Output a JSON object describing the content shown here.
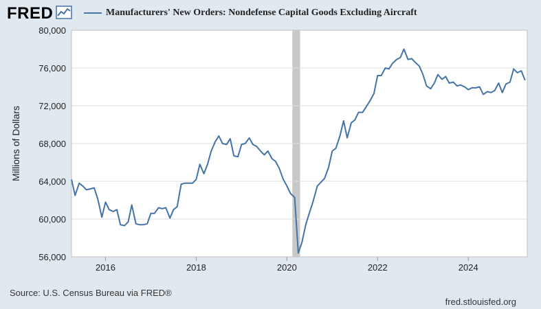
{
  "brand": {
    "logo": "FRED",
    "icon": "trend-chart-icon"
  },
  "source": "Source: U.S. Census Bureau via FRED®",
  "credit": "fred.stlouisfed.org",
  "colors": {
    "background": "#e1e9f0",
    "plot_bg": "#ffffff",
    "series": "#4572a7",
    "grid": "#dddddd",
    "recession": "#c8c8c8"
  },
  "chart_data": {
    "type": "line",
    "title": "Manufacturers' New Orders: Nondefense Capital Goods Excluding Aircraft",
    "xlabel": "",
    "ylabel": "Millions of Dollars",
    "ylim": [
      56000,
      80000
    ],
    "xlim": [
      2015.25,
      2025.3
    ],
    "yticks": [
      56000,
      60000,
      64000,
      68000,
      72000,
      76000,
      80000
    ],
    "ytick_labels": [
      "56,000",
      "60,000",
      "64,000",
      "68,000",
      "72,000",
      "76,000",
      "80,000"
    ],
    "xticks": [
      2016,
      2018,
      2020,
      2022,
      2024
    ],
    "xtick_labels": [
      "2016",
      "2018",
      "2020",
      "2022",
      "2024"
    ],
    "grid": true,
    "recession": [
      2020.12,
      2020.29
    ],
    "series": [
      {
        "name": "Manufacturers' New Orders: Nondefense Capital Goods Excluding Aircraft",
        "x": [
          2015.25,
          2015.33,
          2015.42,
          2015.5,
          2015.58,
          2015.67,
          2015.75,
          2015.83,
          2015.92,
          2016.0,
          2016.08,
          2016.17,
          2016.25,
          2016.33,
          2016.42,
          2016.5,
          2016.58,
          2016.67,
          2016.75,
          2016.83,
          2016.92,
          2017.0,
          2017.08,
          2017.17,
          2017.25,
          2017.33,
          2017.42,
          2017.5,
          2017.58,
          2017.67,
          2017.75,
          2017.83,
          2017.92,
          2018.0,
          2018.08,
          2018.17,
          2018.25,
          2018.33,
          2018.42,
          2018.5,
          2018.58,
          2018.67,
          2018.75,
          2018.83,
          2018.92,
          2019.0,
          2019.08,
          2019.17,
          2019.25,
          2019.33,
          2019.42,
          2019.5,
          2019.58,
          2019.67,
          2019.75,
          2019.83,
          2019.92,
          2020.0,
          2020.08,
          2020.17,
          2020.25,
          2020.33,
          2020.42,
          2020.5,
          2020.58,
          2020.67,
          2020.75,
          2020.83,
          2020.92,
          2021.0,
          2021.08,
          2021.17,
          2021.25,
          2021.33,
          2021.42,
          2021.5,
          2021.58,
          2021.67,
          2021.75,
          2021.83,
          2021.92,
          2022.0,
          2022.08,
          2022.17,
          2022.25,
          2022.33,
          2022.42,
          2022.5,
          2022.58,
          2022.67,
          2022.75,
          2022.83,
          2022.92,
          2023.0,
          2023.08,
          2023.17,
          2023.25,
          2023.33,
          2023.42,
          2023.5,
          2023.58,
          2023.67,
          2023.75,
          2023.83,
          2023.92,
          2024.0,
          2024.08,
          2024.17,
          2024.25,
          2024.33,
          2024.42,
          2024.5,
          2024.58,
          2024.67,
          2024.75,
          2024.83,
          2024.92,
          2025.0,
          2025.08,
          2025.17,
          2025.25
        ],
        "values": [
          64200,
          62500,
          63800,
          63500,
          63100,
          63200,
          63300,
          62100,
          60200,
          61800,
          61000,
          60800,
          61000,
          59400,
          59300,
          59700,
          61500,
          59500,
          59400,
          59400,
          59500,
          60600,
          60600,
          61200,
          61100,
          61200,
          60100,
          61000,
          61300,
          63700,
          63800,
          63800,
          63800,
          64200,
          65800,
          64800,
          65800,
          67200,
          68200,
          68800,
          68000,
          67900,
          68500,
          66700,
          66600,
          67900,
          68000,
          68600,
          67900,
          67700,
          67200,
          66800,
          67200,
          66400,
          66100,
          65400,
          64200,
          63500,
          62700,
          62300,
          56400,
          57500,
          59500,
          60700,
          61900,
          63500,
          63900,
          64300,
          65500,
          67200,
          67500,
          68800,
          70400,
          68600,
          70200,
          70500,
          71300,
          71300,
          71900,
          72500,
          73300,
          75200,
          75200,
          76000,
          75900,
          76500,
          76900,
          77100,
          78000,
          76900,
          77000,
          76600,
          76200,
          75300,
          74100,
          73800,
          74400,
          75300,
          74800,
          75100,
          74400,
          74500,
          74100,
          74200,
          74000,
          73700,
          73900,
          73900,
          74000,
          73200,
          73500,
          73400,
          73600,
          74400,
          73400,
          74300,
          74500,
          75900,
          75500,
          75700,
          74700
        ]
      }
    ]
  }
}
